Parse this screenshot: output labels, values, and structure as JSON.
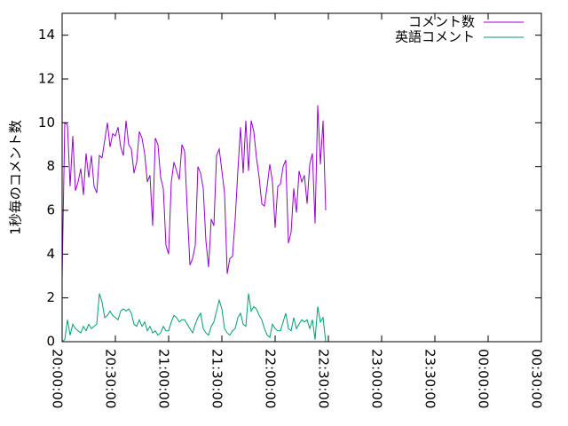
{
  "chart_data": {
    "type": "line",
    "ylabel": "1秒毎のコメント数",
    "xlabel": "",
    "title": "",
    "ylim": [
      0,
      15
    ],
    "yticks": [
      0,
      2,
      4,
      6,
      8,
      10,
      12,
      14
    ],
    "x_start": "20:00:00",
    "x_end": "00:30:00",
    "x_step_minutes": 1.5,
    "xtick_labels": [
      "20:00:00",
      "20:30:00",
      "21:00:00",
      "21:30:00",
      "22:00:00",
      "22:30:00",
      "23:00:00",
      "23:30:00",
      "00:00:00",
      "00:30:00"
    ],
    "grid": false,
    "legend_position": "top-right",
    "series": [
      {
        "name": "コメント数",
        "color": "#9400d3",
        "values": [
          2.9,
          10,
          9.9,
          7.1,
          9.4,
          6.9,
          7.3,
          7.9,
          6.7,
          8.6,
          7.5,
          8.5,
          7.1,
          6.8,
          8.5,
          8.4,
          9.2,
          10,
          8.9,
          9.5,
          9.4,
          9.8,
          8.9,
          8.5,
          10.1,
          9.0,
          8.8,
          7.7,
          8.2,
          9.6,
          9.3,
          8.6,
          7.3,
          7.6,
          5.3,
          9.3,
          9.0,
          7.5,
          7.0,
          4.4,
          4.0,
          7.3,
          8.2,
          7.8,
          7.4,
          9.0,
          8.7,
          6.0,
          3.5,
          3.8,
          4.4,
          8.0,
          7.7,
          7.0,
          4.6,
          3.4,
          5.6,
          5.3,
          8.5,
          8.8,
          7.8,
          6.8,
          3.1,
          3.8,
          3.9,
          5.6,
          7.8,
          9.8,
          7.7,
          10.1,
          7.8,
          10.1,
          9.6,
          8.4,
          7.5,
          6.3,
          6.2,
          7.1,
          8.1,
          7.3,
          5.2,
          7.1,
          7.2,
          8.0,
          8.3,
          4.5,
          5.0,
          7.0,
          5.9,
          7.8,
          7.3,
          7.6,
          6.3,
          8.1,
          8.6,
          5.4,
          10.8,
          8.1,
          10.1,
          6.0
        ]
      },
      {
        "name": "英語コメント",
        "color": "#009e73",
        "values": [
          0,
          0.1,
          1.0,
          0.3,
          0.8,
          0.6,
          0.5,
          0.4,
          0.7,
          0.5,
          0.8,
          0.6,
          0.7,
          0.8,
          2.2,
          1.8,
          1.1,
          1.2,
          1.4,
          1.2,
          1.1,
          1.0,
          1.4,
          1.5,
          1.4,
          1.5,
          1.3,
          0.8,
          0.7,
          1.0,
          0.7,
          0.9,
          0.5,
          0.7,
          0.4,
          0.5,
          0.3,
          0.4,
          0.7,
          0.5,
          0.5,
          0.9,
          1.2,
          1.1,
          0.9,
          1.0,
          1.0,
          0.8,
          0.6,
          0.4,
          0.8,
          1.1,
          1.3,
          0.6,
          0.4,
          0.3,
          0.7,
          0.9,
          1.4,
          1.9,
          1.5,
          0.6,
          0.4,
          0.3,
          0.5,
          0.6,
          1.1,
          1.3,
          0.8,
          0.7,
          2.2,
          1.4,
          1.6,
          1.5,
          1.2,
          1.0,
          0.6,
          0.3,
          0.2,
          0.8,
          0.6,
          0.5,
          0.5,
          0.9,
          1.3,
          0.6,
          0.5,
          1.1,
          0.6,
          0.8,
          1.0,
          0.9,
          1.0,
          0.6,
          1.0,
          0.1,
          1.6,
          0.9,
          1.1,
          0
        ]
      }
    ]
  }
}
